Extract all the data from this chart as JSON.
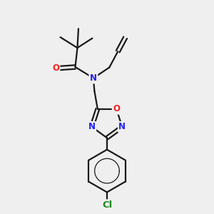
{
  "bg_color": "#efefef",
  "bond_color": "#1a1a1a",
  "bond_width": 1.6,
  "atom_colors": {
    "N": "#2020ee",
    "O": "#ee2020",
    "Cl": "#208820",
    "C": "#1a1a1a"
  },
  "font_size_atom": 8.5,
  "fig_size": [
    3.0,
    3.0
  ],
  "dpi": 100,
  "xlim": [
    0,
    10
  ],
  "ylim": [
    0,
    10
  ]
}
